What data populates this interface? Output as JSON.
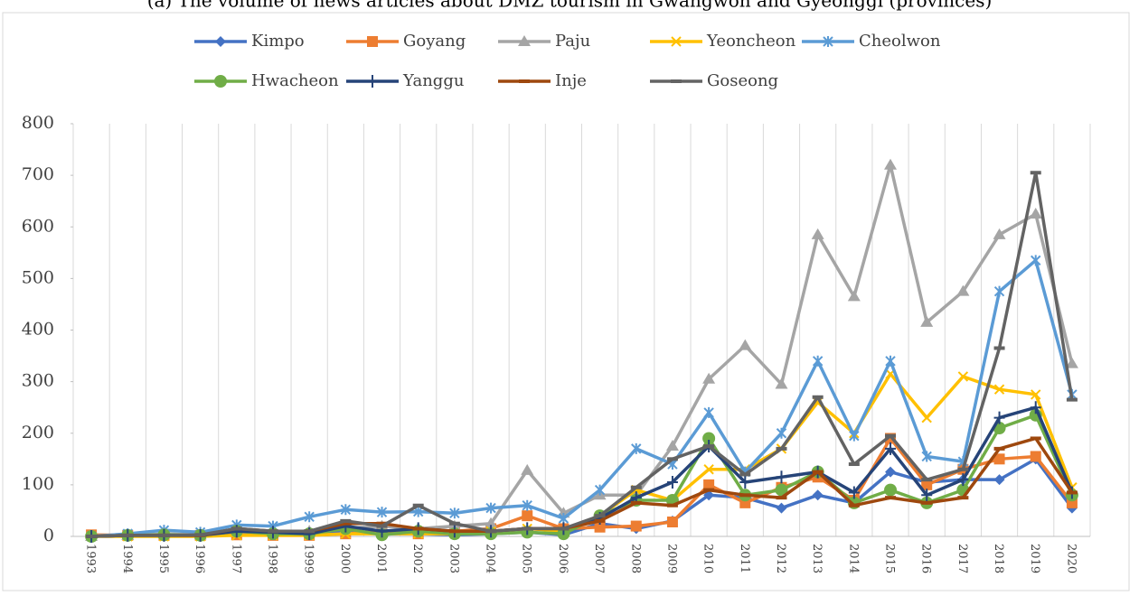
{
  "chart_data": {
    "type": "line",
    "title": "(a) The volume of news articles about DMZ tourism in Gwangwon and Gyeonggi (provinces)",
    "categories": [
      "1993",
      "1994",
      "1995",
      "1996",
      "1997",
      "1998",
      "1999",
      "2000",
      "2001",
      "2002",
      "2003",
      "2004",
      "2005",
      "2006",
      "2007",
      "2008",
      "2009",
      "2010",
      "2011",
      "2012",
      "2013",
      "2014",
      "2015",
      "2016",
      "2017",
      "2018",
      "2019",
      "2020"
    ],
    "ylim": [
      0,
      800
    ],
    "yticks": [
      0,
      100,
      200,
      300,
      400,
      500,
      600,
      700,
      800
    ],
    "series": [
      {
        "name": "Kimpo",
        "color": "#4472c4",
        "marker": "diamond",
        "values": [
          0,
          2,
          2,
          2,
          10,
          5,
          3,
          10,
          5,
          5,
          3,
          5,
          8,
          3,
          25,
          15,
          30,
          80,
          75,
          55,
          80,
          65,
          125,
          105,
          110,
          110,
          150,
          55
        ]
      },
      {
        "name": "Goyang",
        "color": "#ed7d31",
        "marker": "square",
        "values": [
          3,
          2,
          2,
          2,
          3,
          2,
          2,
          5,
          10,
          5,
          10,
          15,
          40,
          15,
          18,
          20,
          28,
          100,
          65,
          95,
          115,
          70,
          190,
          100,
          130,
          150,
          155,
          65
        ]
      },
      {
        "name": "Paju",
        "color": "#a5a5a5",
        "marker": "triangle",
        "values": [
          0,
          2,
          5,
          3,
          15,
          10,
          10,
          15,
          20,
          15,
          20,
          25,
          128,
          45,
          80,
          80,
          175,
          305,
          370,
          295,
          585,
          465,
          720,
          415,
          475,
          585,
          625,
          335
        ]
      },
      {
        "name": "Yeoncheon",
        "color": "#ffc000",
        "marker": "x",
        "values": [
          0,
          0,
          0,
          0,
          2,
          2,
          2,
          5,
          5,
          5,
          5,
          10,
          15,
          10,
          40,
          90,
          70,
          130,
          130,
          170,
          260,
          200,
          315,
          230,
          310,
          285,
          275,
          95
        ]
      },
      {
        "name": "Cheolwon",
        "color": "#5b9bd5",
        "marker": "star",
        "values": [
          0,
          5,
          12,
          8,
          22,
          20,
          38,
          52,
          47,
          48,
          45,
          55,
          60,
          35,
          90,
          170,
          140,
          240,
          125,
          200,
          340,
          195,
          340,
          155,
          145,
          475,
          535,
          275
        ]
      },
      {
        "name": "Hwacheon",
        "color": "#70ad47",
        "marker": "circle",
        "values": [
          0,
          2,
          3,
          2,
          10,
          5,
          5,
          15,
          3,
          10,
          5,
          5,
          8,
          5,
          40,
          70,
          70,
          190,
          80,
          90,
          125,
          65,
          90,
          65,
          90,
          210,
          235,
          80
        ]
      },
      {
        "name": "Yanggu",
        "color": "#264478",
        "marker": "plus",
        "values": [
          0,
          2,
          2,
          2,
          10,
          8,
          5,
          20,
          10,
          15,
          10,
          10,
          15,
          15,
          35,
          75,
          105,
          175,
          105,
          115,
          125,
          85,
          170,
          80,
          110,
          230,
          250,
          85
        ]
      },
      {
        "name": "Inje",
        "color": "#9e480e",
        "marker": "dash",
        "values": [
          0,
          2,
          2,
          2,
          15,
          10,
          10,
          25,
          25,
          15,
          10,
          10,
          15,
          15,
          30,
          65,
          60,
          90,
          80,
          75,
          125,
          60,
          75,
          65,
          75,
          170,
          190,
          85
        ]
      },
      {
        "name": "Goseong",
        "color": "#636363",
        "marker": "dash",
        "values": [
          0,
          2,
          2,
          3,
          15,
          10,
          10,
          30,
          20,
          60,
          25,
          10,
          15,
          15,
          40,
          95,
          150,
          175,
          120,
          170,
          270,
          140,
          195,
          110,
          130,
          365,
          705,
          265
        ]
      }
    ]
  }
}
